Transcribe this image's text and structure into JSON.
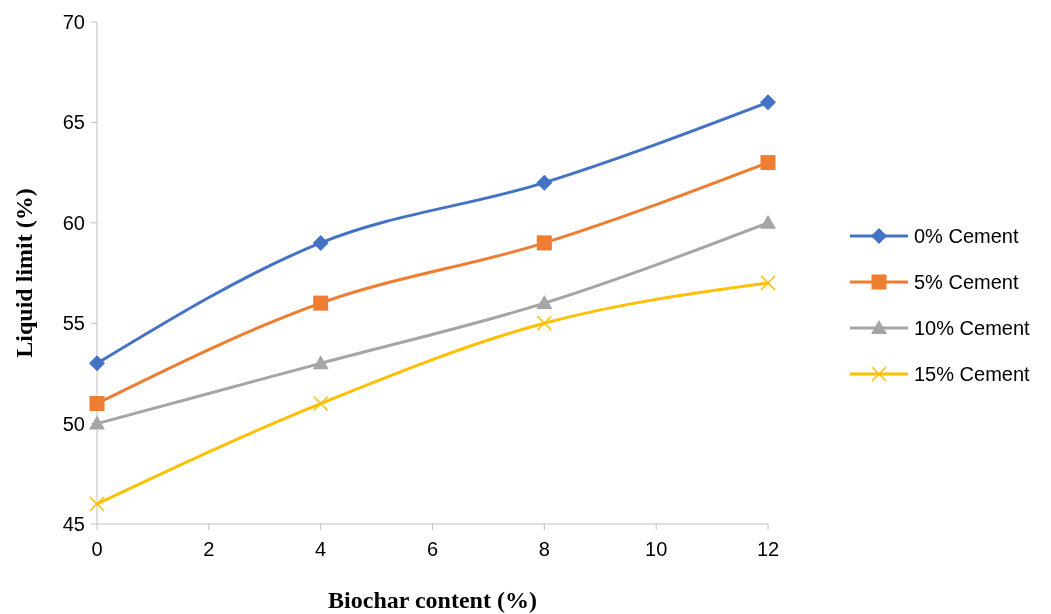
{
  "chart_data": {
    "type": "line",
    "xlabel": "Biochar content (%)",
    "ylabel": "Liquid limit (%)",
    "x": [
      0,
      4,
      8,
      12
    ],
    "xlim": [
      0,
      12
    ],
    "xticks": [
      0,
      2,
      4,
      6,
      8,
      10,
      12
    ],
    "ylim": [
      45,
      70
    ],
    "yticks": [
      45,
      50,
      55,
      60,
      65,
      70
    ],
    "grid": false,
    "legend": "right",
    "line_style": "solid",
    "series": [
      {
        "name": "0% Cement",
        "color": "#4472c4",
        "marker": "diamond",
        "values": [
          53,
          59,
          62,
          66
        ]
      },
      {
        "name": "5% Cement",
        "color": "#ed7d31",
        "marker": "square",
        "values": [
          51,
          56,
          59,
          63
        ]
      },
      {
        "name": "10% Cement",
        "color": "#a5a5a5",
        "marker": "triangle",
        "values": [
          50,
          53,
          56,
          60
        ]
      },
      {
        "name": "15% Cement",
        "color": "#ffc000",
        "marker": "cross",
        "values": [
          46,
          51,
          55,
          57
        ]
      }
    ]
  }
}
